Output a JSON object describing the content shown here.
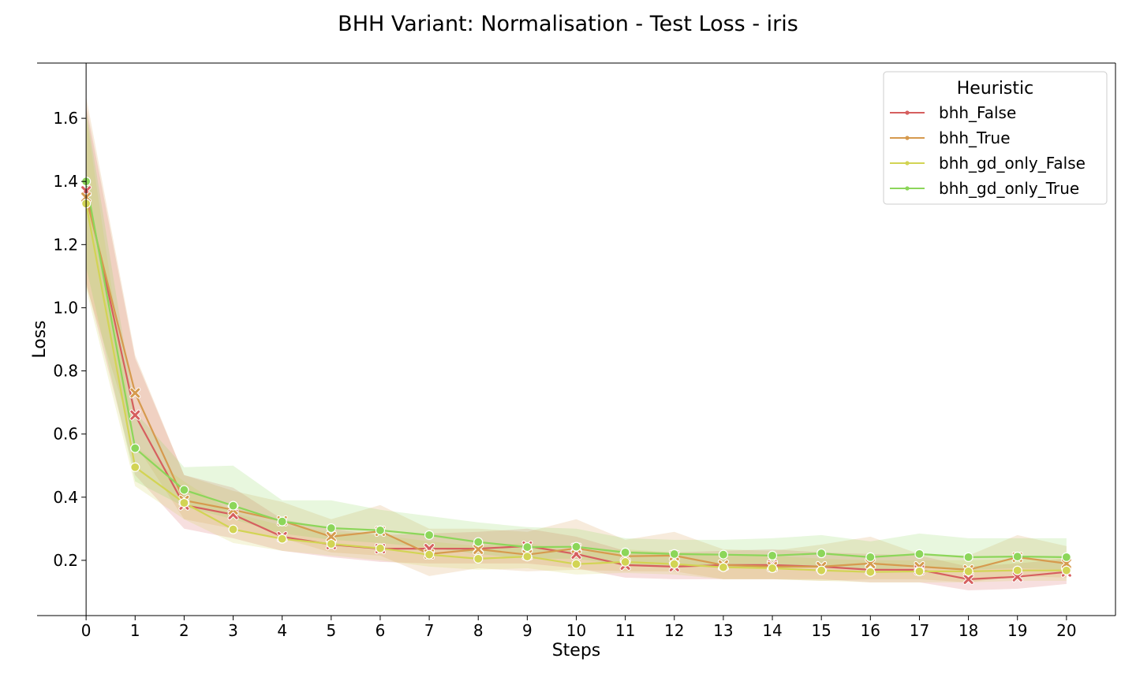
{
  "chart_data": {
    "type": "line",
    "title": "BHH Variant: Normalisation - Test Loss - iris",
    "xlabel": "Steps",
    "ylabel": "Loss",
    "x": [
      0,
      1,
      2,
      3,
      4,
      5,
      6,
      7,
      8,
      9,
      10,
      11,
      12,
      13,
      14,
      15,
      16,
      17,
      18,
      19,
      20
    ],
    "xlim": [
      -1,
      21
    ],
    "ylim": [
      0.025,
      1.775
    ],
    "y_ticks": [
      0.2,
      0.4,
      0.6,
      0.8,
      1.0,
      1.2,
      1.4,
      1.6
    ],
    "y_tick_labels": [
      "0.2",
      "0.4",
      "0.6",
      "0.8",
      "1.0",
      "1.2",
      "1.4",
      "1.6"
    ],
    "legend": {
      "title": "Heuristic",
      "position": "top-right"
    },
    "series": [
      {
        "name": "bhh_False",
        "color": "#d65f5f",
        "marker": "x",
        "values": [
          1.37,
          0.66,
          0.375,
          0.345,
          0.275,
          0.25,
          0.237,
          0.237,
          0.237,
          0.245,
          0.22,
          0.185,
          0.18,
          0.185,
          0.185,
          0.18,
          0.17,
          0.17,
          0.14,
          0.148,
          0.163
        ],
        "lower": [
          1.08,
          0.47,
          0.3,
          0.27,
          0.23,
          0.21,
          0.195,
          0.19,
          0.19,
          0.19,
          0.175,
          0.145,
          0.14,
          0.14,
          0.14,
          0.14,
          0.13,
          0.13,
          0.105,
          0.11,
          0.125
        ],
        "upper": [
          1.64,
          0.84,
          0.47,
          0.43,
          0.33,
          0.3,
          0.28,
          0.285,
          0.29,
          0.3,
          0.275,
          0.23,
          0.225,
          0.23,
          0.235,
          0.225,
          0.22,
          0.215,
          0.18,
          0.19,
          0.205
        ]
      },
      {
        "name": "bhh_True",
        "color": "#d69a4e",
        "marker": "x",
        "values": [
          1.35,
          0.73,
          0.39,
          0.36,
          0.325,
          0.275,
          0.292,
          0.22,
          0.235,
          0.218,
          0.238,
          0.213,
          0.215,
          0.185,
          0.18,
          0.18,
          0.19,
          0.18,
          0.17,
          0.21,
          0.19
        ],
        "lower": [
          1.07,
          0.57,
          0.33,
          0.3,
          0.27,
          0.225,
          0.215,
          0.15,
          0.175,
          0.165,
          0.17,
          0.165,
          0.165,
          0.14,
          0.14,
          0.135,
          0.14,
          0.14,
          0.13,
          0.15,
          0.145
        ],
        "upper": [
          1.67,
          0.85,
          0.47,
          0.42,
          0.385,
          0.33,
          0.375,
          0.3,
          0.3,
          0.29,
          0.33,
          0.265,
          0.29,
          0.235,
          0.23,
          0.25,
          0.275,
          0.22,
          0.215,
          0.28,
          0.245
        ]
      },
      {
        "name": "bhh_gd_only_False",
        "color": "#d2d454",
        "marker": "o",
        "values": [
          1.33,
          0.495,
          0.382,
          0.298,
          0.268,
          0.252,
          0.238,
          0.218,
          0.205,
          0.212,
          0.188,
          0.195,
          0.188,
          0.178,
          0.175,
          0.168,
          0.163,
          0.165,
          0.165,
          0.168,
          0.168
        ],
        "lower": [
          1.06,
          0.435,
          0.33,
          0.255,
          0.23,
          0.215,
          0.2,
          0.18,
          0.17,
          0.175,
          0.155,
          0.16,
          0.155,
          0.14,
          0.14,
          0.135,
          0.13,
          0.13,
          0.13,
          0.135,
          0.135
        ],
        "upper": [
          1.61,
          0.56,
          0.45,
          0.35,
          0.31,
          0.29,
          0.28,
          0.26,
          0.245,
          0.255,
          0.225,
          0.235,
          0.225,
          0.22,
          0.215,
          0.205,
          0.2,
          0.2,
          0.2,
          0.205,
          0.205
        ]
      },
      {
        "name": "bhh_gd_only_True",
        "color": "#8cd65a",
        "marker": "o",
        "values": [
          1.4,
          0.555,
          0.423,
          0.373,
          0.323,
          0.302,
          0.295,
          0.28,
          0.258,
          0.242,
          0.243,
          0.225,
          0.22,
          0.218,
          0.215,
          0.222,
          0.21,
          0.22,
          0.21,
          0.212,
          0.21
        ],
        "lower": [
          1.13,
          0.45,
          0.37,
          0.33,
          0.285,
          0.265,
          0.255,
          0.24,
          0.22,
          0.205,
          0.205,
          0.185,
          0.18,
          0.18,
          0.175,
          0.18,
          0.17,
          0.18,
          0.17,
          0.175,
          0.17
        ],
        "upper": [
          1.63,
          0.67,
          0.495,
          0.5,
          0.39,
          0.39,
          0.36,
          0.34,
          0.32,
          0.305,
          0.3,
          0.27,
          0.265,
          0.265,
          0.27,
          0.28,
          0.26,
          0.285,
          0.27,
          0.27,
          0.27
        ]
      }
    ]
  }
}
